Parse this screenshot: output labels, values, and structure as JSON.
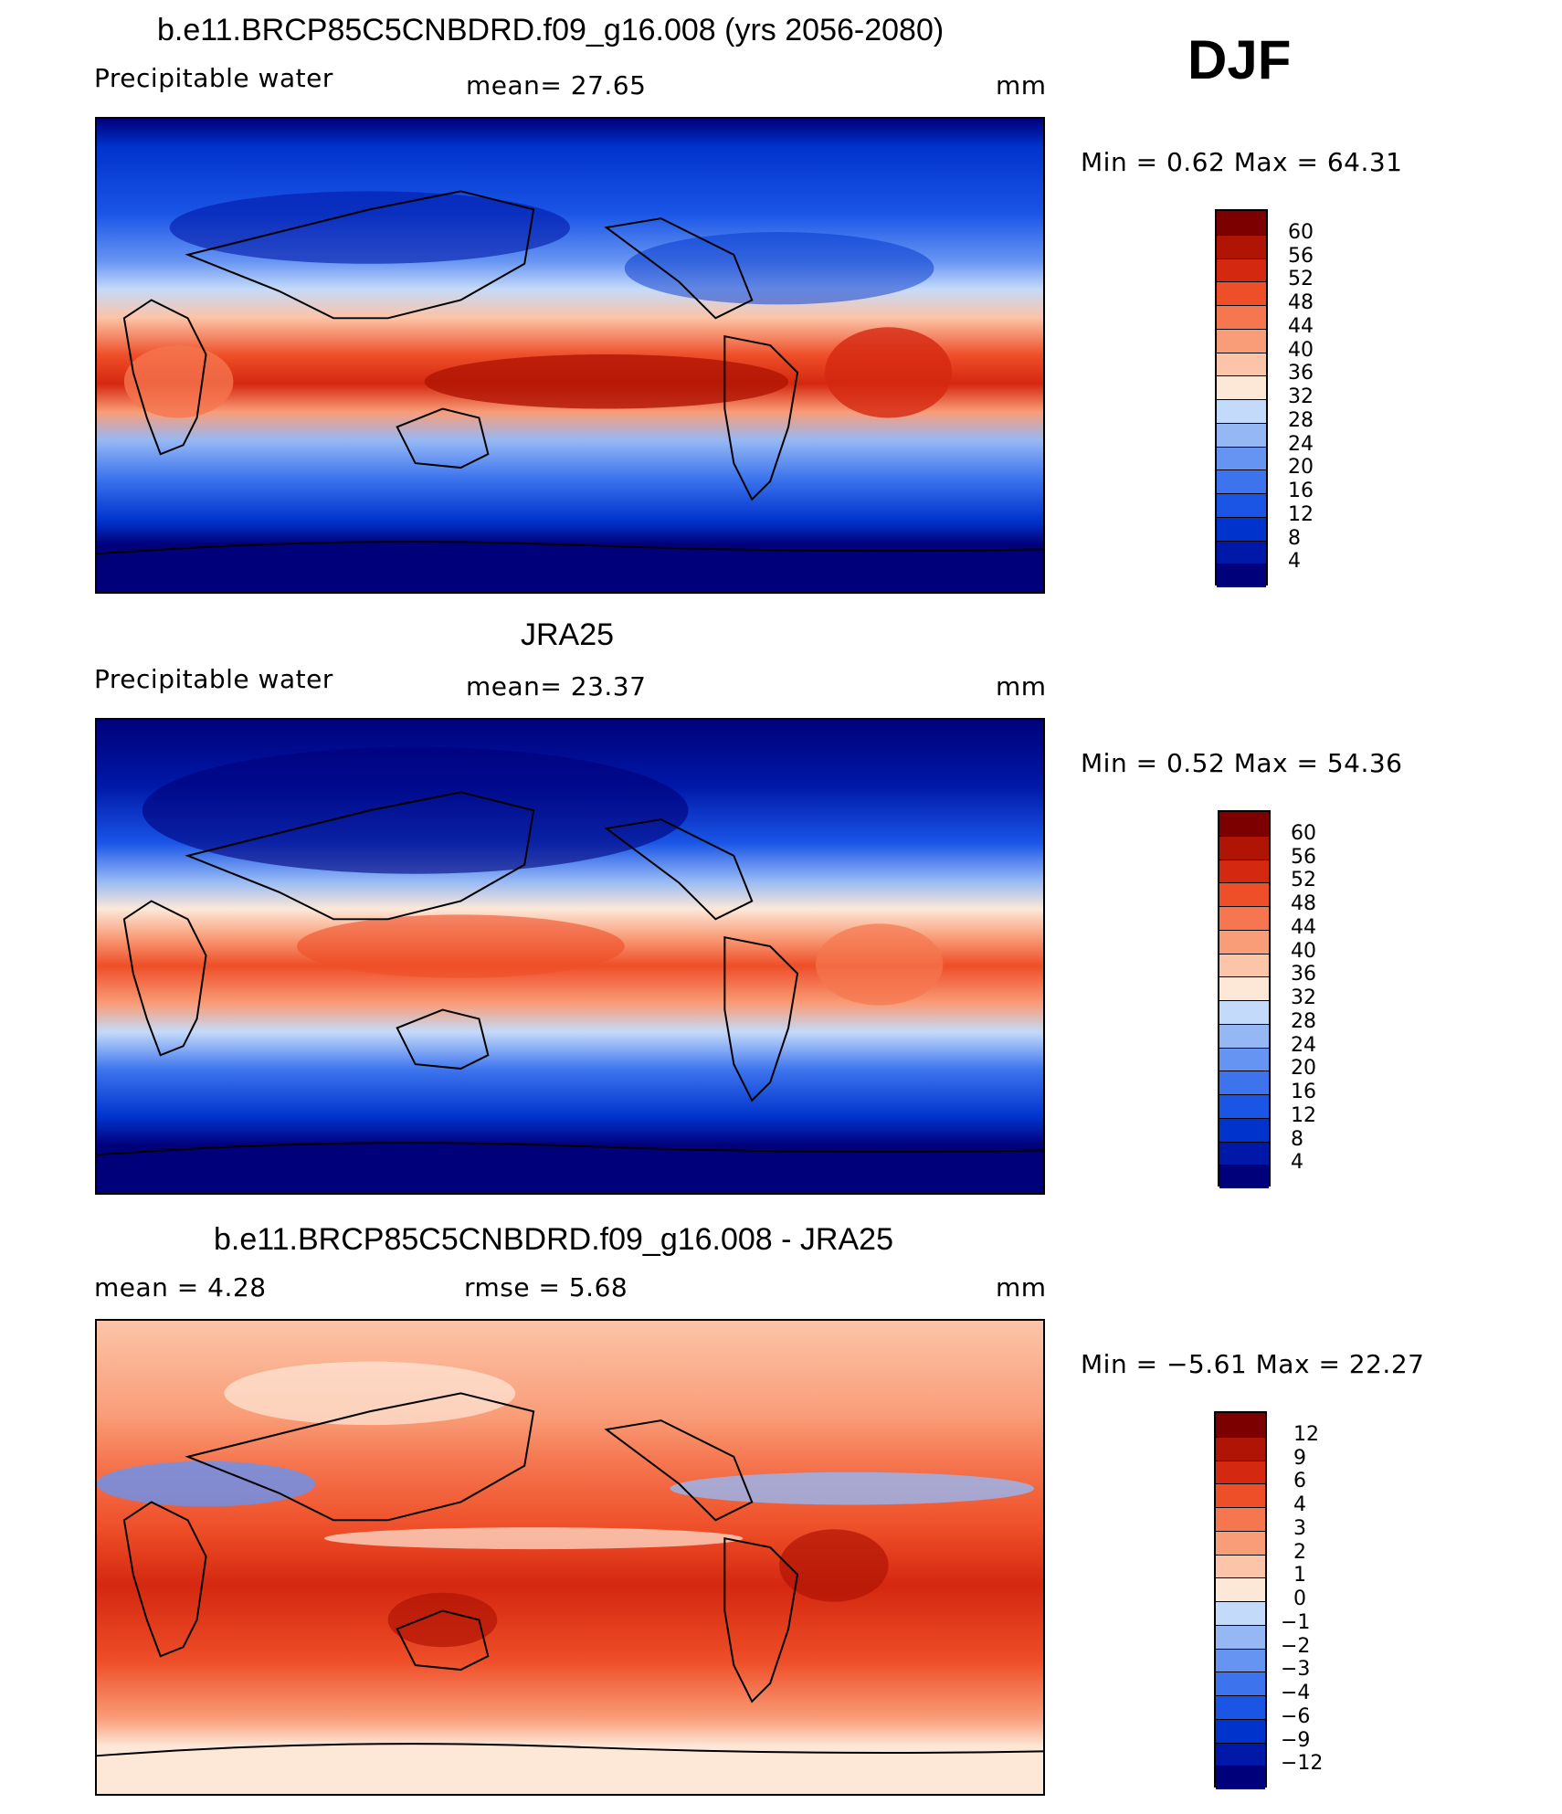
{
  "djf_label": "DJF",
  "panels": [
    {
      "title": "b.e11.BRCP85C5CNBDRD.f09_g16.008 (yrs 2056-2080)",
      "left_label": "Precipitable  water",
      "mid_label": "mean=   27.65",
      "right_label": "mm",
      "minmax": "Min  =     0.62  Max  =    64.31"
    },
    {
      "title": "JRA25",
      "left_label": "Precipitable  water",
      "mid_label": "mean=   23.37",
      "right_label": "mm",
      "minmax": "Min  =     0.52  Max  =    54.36"
    },
    {
      "title": "b.e11.BRCP85C5CNBDRD.f09_g16.008 - JRA25",
      "left_label": "mean  =     4.28",
      "mid_label": "rmse  =     5.68",
      "right_label": "mm",
      "minmax": "Min  =    −5.61  Max  =    22.27"
    }
  ],
  "chart_data": [
    {
      "type": "heatmap",
      "title": "b.e11.BRCP85C5CNBDRD.f09_g16.008 (yrs 2056-2080)",
      "variable": "Precipitable  water",
      "units": "mm",
      "mean": 27.65,
      "min": 0.62,
      "max": 64.31,
      "colorbar_levels": [
        4,
        8,
        12,
        16,
        20,
        24,
        28,
        32,
        36,
        40,
        44,
        48,
        52,
        56,
        60
      ],
      "colorbar_labels": [
        "60",
        "56",
        "52",
        "48",
        "44",
        "40",
        "36",
        "32",
        "28",
        "24",
        "20",
        "16",
        "12",
        "8",
        "4"
      ],
      "colors": [
        "#00007a",
        "#0018a8",
        "#0033cc",
        "#1a55e6",
        "#3d74ee",
        "#6694f2",
        "#95b8f5",
        "#c4dafa",
        "#fde8d8",
        "#fcc4a8",
        "#f99d78",
        "#f5764f",
        "#ee4e28",
        "#d42810",
        "#b01404",
        "#7d0000"
      ],
      "projection": "global lat-lon, Pacific-centred"
    },
    {
      "type": "heatmap",
      "title": "JRA25",
      "variable": "Precipitable  water",
      "units": "mm",
      "mean": 23.37,
      "min": 0.52,
      "max": 54.36,
      "colorbar_levels": [
        4,
        8,
        12,
        16,
        20,
        24,
        28,
        32,
        36,
        40,
        44,
        48,
        52,
        56,
        60
      ],
      "colorbar_labels": [
        "60",
        "56",
        "52",
        "48",
        "44",
        "40",
        "36",
        "32",
        "28",
        "24",
        "20",
        "16",
        "12",
        "8",
        "4"
      ],
      "colors": [
        "#00007a",
        "#0018a8",
        "#0033cc",
        "#1a55e6",
        "#3d74ee",
        "#6694f2",
        "#95b8f5",
        "#c4dafa",
        "#fde8d8",
        "#fcc4a8",
        "#f99d78",
        "#f5764f",
        "#ee4e28",
        "#d42810",
        "#b01404",
        "#7d0000"
      ],
      "projection": "global lat-lon, Pacific-centred"
    },
    {
      "type": "heatmap",
      "title": "b.e11.BRCP85C5CNBDRD.f09_g16.008 - JRA25",
      "units": "mm",
      "mean": 4.28,
      "rmse": 5.68,
      "min": -5.61,
      "max": 22.27,
      "colorbar_levels": [
        -12,
        -9,
        -6,
        -4,
        -3,
        -2,
        -1,
        0,
        1,
        2,
        3,
        4,
        6,
        9,
        12
      ],
      "colorbar_labels": [
        "12",
        "9",
        "6",
        "4",
        "3",
        "2",
        "1",
        "0",
        "−1",
        "−2",
        "−3",
        "−4",
        "−6",
        "−9",
        "−12"
      ],
      "colors": [
        "#00007a",
        "#0018a8",
        "#0033cc",
        "#1a55e6",
        "#3d74ee",
        "#6694f2",
        "#95b8f5",
        "#c4dafa",
        "#fde8d8",
        "#fcc4a8",
        "#f99d78",
        "#f5764f",
        "#ee4e28",
        "#d42810",
        "#b01404",
        "#7d0000"
      ],
      "projection": "global lat-lon, Pacific-centred"
    }
  ]
}
